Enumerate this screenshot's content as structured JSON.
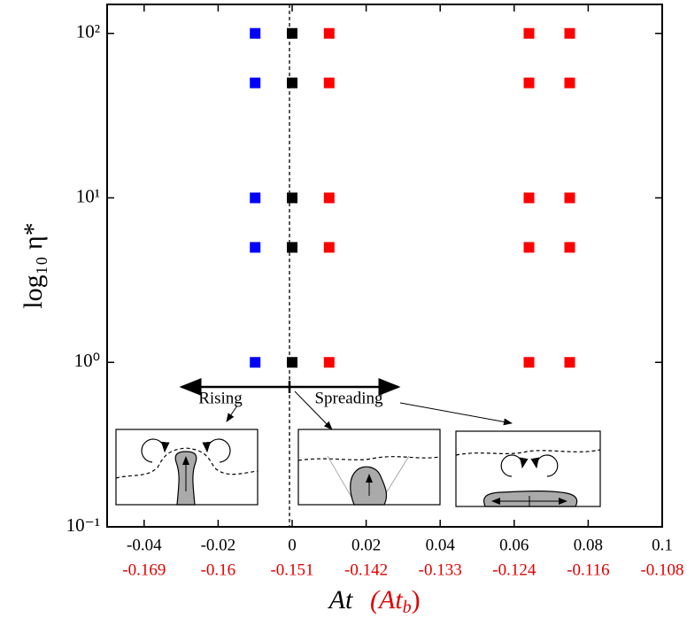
{
  "chart_data": {
    "type": "scatter",
    "ylabel": "log₁₀ η*",
    "xlabel": "At",
    "x2label": [
      "(At",
      "b",
      ")"
    ],
    "xlim": [
      -0.05,
      0.1
    ],
    "xticks": [
      -0.04,
      -0.02,
      0,
      0.02,
      0.04,
      0.06,
      0.08,
      0.1
    ],
    "x2ticks": [
      -0.169,
      -0.16,
      -0.151,
      -0.142,
      -0.133,
      -0.124,
      -0.116,
      -0.108
    ],
    "x2color": "#e00000",
    "log_y": true,
    "ylim": [
      0.1,
      150
    ],
    "yticks": [
      {
        "value": 0.1,
        "label": "10⁻¹"
      },
      {
        "value": 1,
        "label": "10⁰"
      },
      {
        "value": 10,
        "label": "10¹"
      },
      {
        "value": 100,
        "label": "10²"
      }
    ],
    "series": [
      {
        "color": "#0000ff",
        "x": [
          -0.01,
          -0.01,
          -0.01,
          -0.01,
          -0.01
        ],
        "values": [
          100,
          50,
          10,
          5,
          1
        ]
      },
      {
        "color": "#000000",
        "x": [
          0,
          0,
          0,
          0,
          0
        ],
        "values": [
          100,
          50,
          10,
          5,
          1
        ]
      },
      {
        "color": "#ff0000",
        "x": [
          0.01,
          0.01,
          0.01,
          0.01,
          0.01,
          0.064,
          0.064,
          0.064,
          0.064,
          0.064,
          0.075,
          0.075,
          0.075,
          0.075,
          0.075
        ],
        "values": [
          100,
          50,
          10,
          5,
          1,
          100,
          50,
          10,
          5,
          1,
          100,
          50,
          10,
          5,
          1
        ]
      }
    ],
    "annotations": [
      "Rising",
      "Spreading"
    ]
  }
}
